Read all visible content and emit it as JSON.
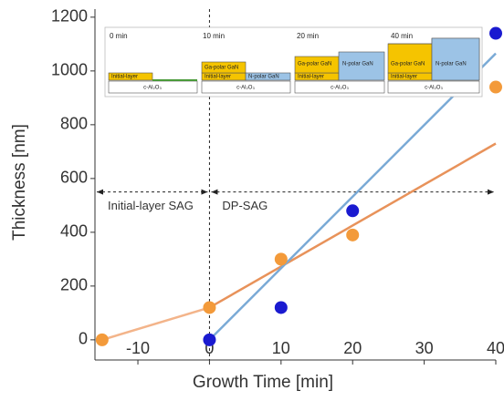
{
  "chart_data": {
    "type": "scatter",
    "x_label": "Growth Time [min]",
    "y_label": "Thickness [nm]",
    "xlim": [
      -16,
      40
    ],
    "ylim": [
      -75,
      1230
    ],
    "xticks": [
      -10,
      0,
      10,
      20,
      30,
      40
    ],
    "yticks": [
      0,
      200,
      400,
      600,
      800,
      1000,
      1200
    ],
    "series": [
      {
        "color": "#1a1ad0",
        "x": [
          0,
          10,
          20,
          40
        ],
        "values": [
          0,
          120,
          480,
          1140
        ]
      },
      {
        "color": "#f39a3a",
        "x": [
          -15,
          0,
          10,
          20,
          40
        ],
        "values": [
          0,
          120,
          300,
          390,
          940
        ]
      }
    ],
    "lines": [
      {
        "color": "#f3b48a",
        "x": [
          -15,
          0
        ],
        "values": [
          0,
          120
        ]
      },
      {
        "color": "#e8925a",
        "x": [
          0,
          40
        ],
        "values": [
          120,
          730
        ]
      },
      {
        "color": "#7aaad6",
        "x": [
          0,
          40
        ],
        "values": [
          0,
          1065
        ]
      }
    ],
    "divider_x": 0,
    "arrow_y": 550,
    "phase_labels": [
      "Initial-layer SAG",
      "DP-SAG"
    ],
    "inset": {
      "times": [
        "0 min",
        "10 min",
        "20 min",
        "40 min"
      ],
      "substrate": "c-Al₂O₃",
      "initial_layer": "Initial-layer",
      "ga_polar": "Ga-polar GaN",
      "n_polar": "N-polar GaN"
    }
  }
}
